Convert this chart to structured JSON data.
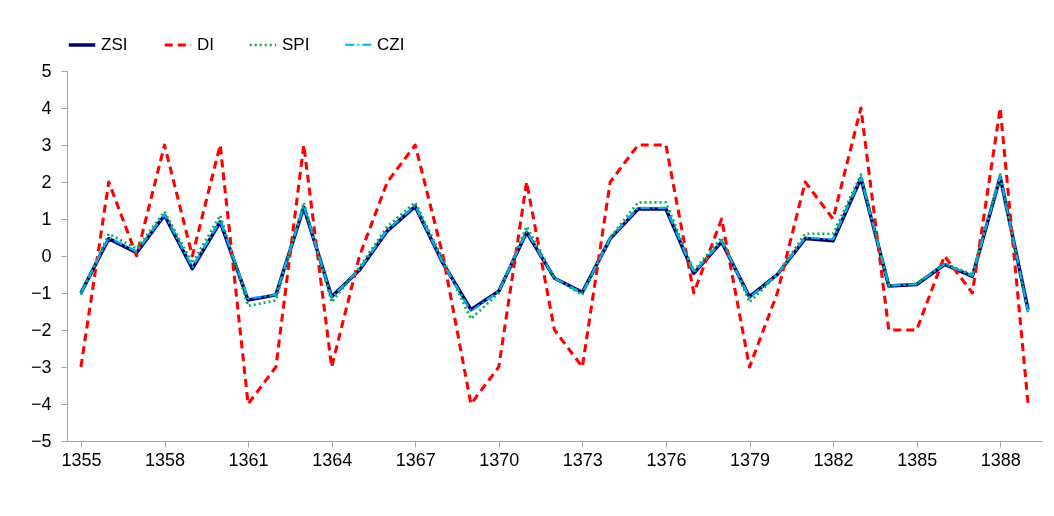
{
  "chart_data": {
    "type": "line",
    "categories": [
      "1355",
      null,
      null,
      "1358",
      null,
      null,
      "1361",
      null,
      null,
      "1364",
      null,
      null,
      "1367",
      null,
      null,
      "1370",
      null,
      null,
      "1373",
      null,
      null,
      "1376",
      null,
      null,
      "1379",
      null,
      null,
      "1382",
      null,
      null,
      "1385",
      null,
      null,
      "1388",
      null
    ],
    "series": [
      {
        "name": "ZSI",
        "color": "#000066",
        "line_style": "solid",
        "values": [
          -1.0,
          0.47,
          0.09,
          1.1,
          -0.34,
          0.92,
          -1.19,
          -1.05,
          1.32,
          -1.1,
          -0.38,
          0.68,
          1.34,
          -0.2,
          -1.45,
          -0.95,
          0.64,
          -0.6,
          -0.98,
          0.47,
          1.27,
          1.27,
          -0.47,
          0.38,
          -1.1,
          -0.5,
          0.47,
          0.41,
          2.1,
          -0.81,
          -0.77,
          -0.23,
          -0.55,
          2.13,
          -1.45
        ]
      },
      {
        "name": "DI",
        "color": "#ff0000",
        "line_style": "dashed",
        "values": [
          -3,
          2,
          0,
          3,
          0,
          3,
          -4,
          -3,
          3,
          -3,
          0,
          2,
          3,
          0,
          -4,
          -3,
          2,
          -2,
          -3,
          2,
          3,
          3,
          -1,
          1,
          -3,
          -1,
          2,
          1,
          4,
          -2,
          -2,
          0,
          -1,
          4,
          -4
        ]
      },
      {
        "name": "SPI",
        "color": "#00b050",
        "line_style": "dotted",
        "values": [
          -1.05,
          0.6,
          0.2,
          1.2,
          -0.2,
          1.1,
          -1.35,
          -1.2,
          1.45,
          -1.25,
          -0.3,
          0.8,
          1.45,
          -0.1,
          -1.7,
          -1.0,
          0.8,
          -0.6,
          -1.05,
          0.5,
          1.45,
          1.45,
          -0.4,
          0.5,
          -1.25,
          -0.5,
          0.6,
          0.6,
          2.2,
          -0.8,
          -0.75,
          -0.2,
          -0.5,
          2.2,
          -1.55
        ]
      },
      {
        "name": "CZI",
        "color": "#00b0f0",
        "line_style": "dashdot",
        "values": [
          -1.0,
          0.5,
          0.12,
          1.12,
          -0.3,
          0.95,
          -1.15,
          -1.05,
          1.35,
          -1.12,
          -0.36,
          0.7,
          1.36,
          -0.2,
          -1.5,
          -0.95,
          0.66,
          -0.6,
          -1.0,
          0.48,
          1.3,
          1.3,
          -0.45,
          0.4,
          -1.12,
          -0.5,
          0.5,
          0.45,
          2.12,
          -0.8,
          -0.76,
          -0.22,
          -0.53,
          2.15,
          -1.48
        ]
      }
    ],
    "ylim": [
      -5,
      5
    ],
    "yticks": [
      -5,
      -4,
      -3,
      -2,
      -1,
      0,
      1,
      2,
      3,
      4,
      5
    ],
    "grid": false,
    "legend": "top"
  }
}
